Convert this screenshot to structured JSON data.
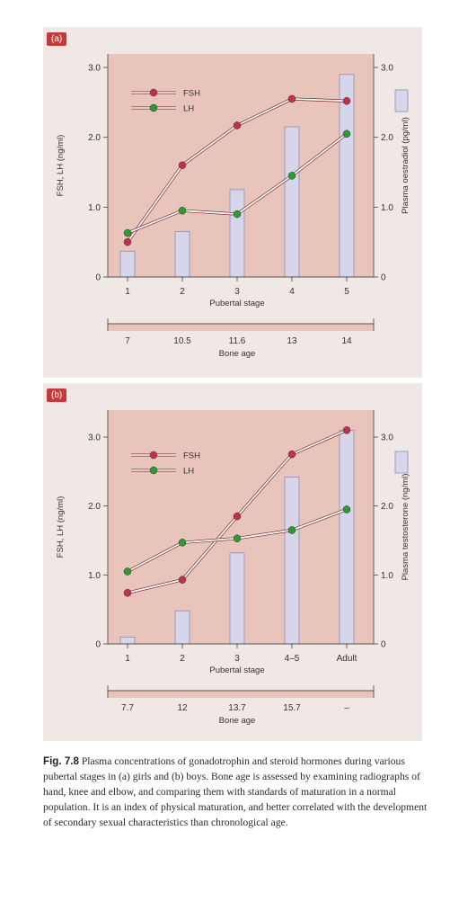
{
  "chart_data": [
    {
      "type": "bar+line",
      "panel_label": "(a)",
      "x_label": "Pubertal stage",
      "categories": [
        "1",
        "2",
        "3",
        "4",
        "5"
      ],
      "bone_age_label": "Bone age",
      "bone_age": [
        "7",
        "10.5",
        "11.6",
        "13",
        "14"
      ],
      "y_left_label": "FSH, LH (ng/ml)",
      "y_left_ticks": [
        "0",
        "1.0",
        "2.0",
        "3.0"
      ],
      "y_left_range": [
        0,
        3
      ],
      "y_right_label": "Plasma oestradiol (pg/ml)",
      "y_right_ticks": [
        "0",
        "1.0",
        "2.0",
        "3.0"
      ],
      "y_right_range": [
        0,
        3
      ],
      "bars": [
        0.37,
        0.65,
        1.25,
        2.15,
        2.9
      ],
      "series": [
        {
          "name": "FSH",
          "color": "#c0314a",
          "values": [
            0.5,
            1.6,
            2.17,
            2.55,
            2.52
          ]
        },
        {
          "name": "LH",
          "color": "#2f9a2f",
          "values": [
            0.63,
            0.95,
            0.9,
            1.45,
            2.05
          ]
        }
      ]
    },
    {
      "type": "bar+line",
      "panel_label": "(b)",
      "x_label": "Pubertal stage",
      "categories": [
        "1",
        "2",
        "3",
        "4–5",
        "Adult"
      ],
      "bone_age_label": "Bone age",
      "bone_age": [
        "7.7",
        "12",
        "13.7",
        "15.7",
        "–"
      ],
      "y_left_label": "FSH, LH (ng/ml)",
      "y_left_ticks": [
        "0",
        "1.0",
        "2.0",
        "3.0"
      ],
      "y_left_range": [
        0,
        3
      ],
      "y_right_label": "Plasma testosterone (ng/ml)",
      "y_right_ticks": [
        "0",
        "1.0",
        "2.0",
        "3.0"
      ],
      "y_right_range": [
        0,
        3
      ],
      "bars": [
        0.1,
        0.48,
        1.32,
        2.42,
        3.1
      ],
      "series": [
        {
          "name": "FSH",
          "color": "#c0314a",
          "values": [
            0.74,
            0.93,
            1.85,
            2.75,
            3.1
          ]
        },
        {
          "name": "LH",
          "color": "#2f9a2f",
          "values": [
            1.05,
            1.47,
            1.53,
            1.65,
            1.95
          ]
        }
      ]
    }
  ],
  "caption": {
    "label": "Fig. 7.8",
    "text": "Plasma concentrations of gonadotrophin and steroid hormones during various pubertal stages in (a) girls and (b) boys. Bone age is assessed by examining radiographs of hand, knee and elbow, and comparing them with standards of maturation in a normal population. It is an index of physical maturation, and better correlated with the development of secondary sexual characteristics than chronological age."
  },
  "colors": {
    "plot_bg": "#e8c4bb",
    "panel_bg": "#efe8e5",
    "bar_fill": "#d6d5ea",
    "bar_stroke": "#8d8ab6",
    "tag_bg": "#c23a3a"
  }
}
